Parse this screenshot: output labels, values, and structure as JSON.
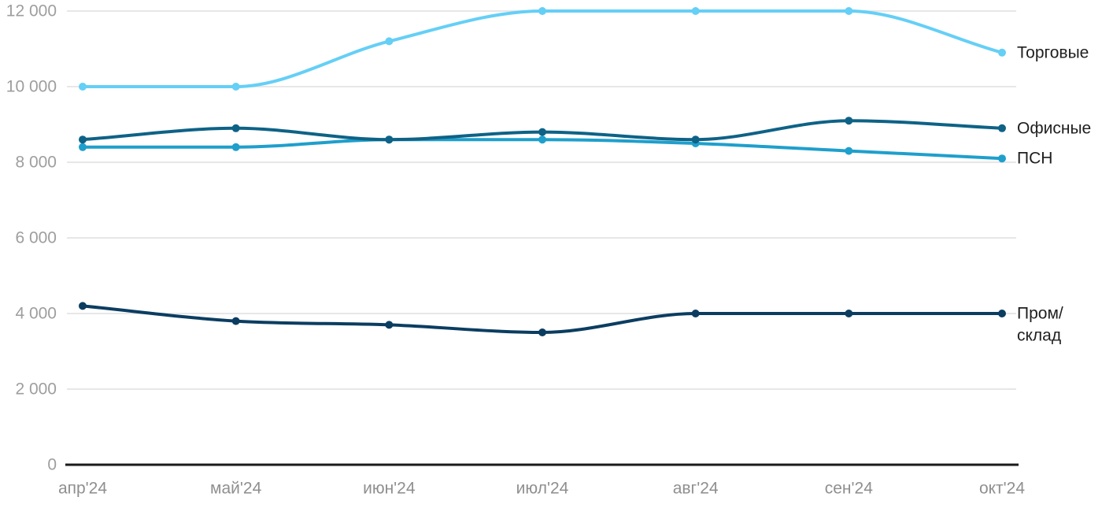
{
  "chart_data": {
    "type": "line",
    "title": "",
    "xlabel": "",
    "ylabel": "",
    "categories": [
      "апр'24",
      "май'24",
      "июн'24",
      "июл'24",
      "авг'24",
      "сен'24",
      "окт'24"
    ],
    "series": [
      {
        "name": "Торговые",
        "slug": "torgovye",
        "color": "#65CFF6",
        "values": [
          10000,
          10000,
          11200,
          12000,
          12000,
          12000,
          10900
        ],
        "label_lines": [
          "Торговые"
        ]
      },
      {
        "name": "ПСН",
        "slug": "psn",
        "color": "#1F9FCC",
        "values": [
          8400,
          8400,
          8600,
          8600,
          8500,
          8300,
          8100
        ],
        "label_lines": [
          "ПСН"
        ]
      },
      {
        "name": "Офисные",
        "slug": "ofisnye",
        "color": "#0E6286",
        "values": [
          8600,
          8900,
          8600,
          8800,
          8600,
          9100,
          8900
        ],
        "label_lines": [
          "Офисные"
        ]
      },
      {
        "name": "Пром/склад",
        "slug": "prom-sklad",
        "color": "#0B3D61",
        "values": [
          4200,
          3800,
          3700,
          3500,
          4000,
          4000,
          4000
        ],
        "label_lines": [
          "Пром/",
          "склад"
        ]
      }
    ],
    "y_ticks": [
      {
        "value": 12000,
        "label": "12 000"
      },
      {
        "value": 10000,
        "label": "10 000"
      },
      {
        "value": 8000,
        "label": "8 000"
      },
      {
        "value": 6000,
        "label": "6 000"
      },
      {
        "value": 4000,
        "label": "4 000"
      },
      {
        "value": 2000,
        "label": "2 000"
      },
      {
        "value": 0,
        "label": "0"
      }
    ],
    "ylim": [
      0,
      12000
    ],
    "grid": true,
    "legend_position": "right-of-line-end",
    "colors": {
      "background": "#FFFFFF",
      "gridline": "#E7E7E7",
      "axis_line": "#1A1A1A",
      "y_tick_text": "#9E9E9E",
      "x_tick_text": "#8F8F8F",
      "legend_text": "#1F1F1F"
    }
  }
}
